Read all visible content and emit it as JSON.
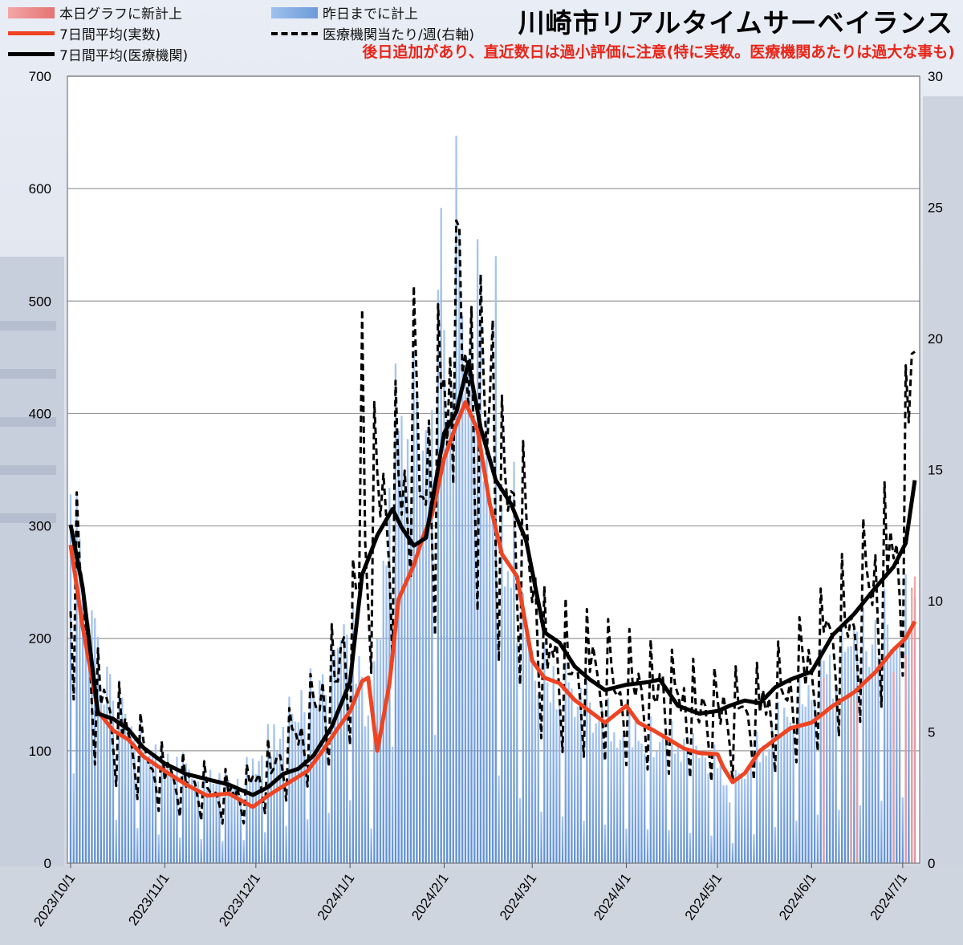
{
  "title": "川崎市リアルタイムサーベイランス",
  "warning": "後日追加があり、直近数日は過小評価に注意(特に実数。医療機関あたりは過大な事も)",
  "legend": [
    {
      "label": "本日グラフに新計上",
      "style": "bar-red"
    },
    {
      "label": "昨日までに計上",
      "style": "bar-blue"
    },
    {
      "label": "7日間平均(実数)",
      "style": "line-red"
    },
    {
      "label": "医療機関当たり/週(右軸)",
      "style": "line-dash"
    },
    {
      "label": "7日間平均(医療機関)",
      "style": "line-black"
    }
  ],
  "colors": {
    "bar_blue": "#7aa6e3",
    "bar_red": "#f19c9c",
    "line_red": "#ee4422",
    "line_black": "#000000",
    "grid": "#9a9a9a"
  },
  "chart_data": {
    "type": "bar",
    "ylim_left": [
      0,
      700
    ],
    "yticks_left": [
      "0",
      "100",
      "200",
      "300",
      "400",
      "500",
      "600",
      "700"
    ],
    "ylim_right": [
      0,
      30
    ],
    "yticks_right": [
      "0",
      "5",
      "10",
      "15",
      "20",
      "25",
      "30"
    ],
    "x_start": "2023-10-01",
    "x_end": "2024-07-05",
    "xtick_labels": [
      "2023/10/1",
      "2023/11/1",
      "2023/12/1",
      "2024/1/1",
      "2024/2/1",
      "2024/3/1",
      "2024/4/1",
      "2024/5/1",
      "2024/6/1",
      "2024/7/1"
    ],
    "series": [
      {
        "name": "昨日までに計上",
        "kind": "daily-bars",
        "axis": "left",
        "anchors": [
          [
            "2023-10-01",
            300
          ],
          [
            "2023-10-10",
            165
          ],
          [
            "2023-10-20",
            120
          ],
          [
            "2023-11-01",
            85
          ],
          [
            "2023-11-15",
            75
          ],
          [
            "2023-11-25",
            65
          ],
          [
            "2023-12-01",
            90
          ],
          [
            "2023-12-15",
            130
          ],
          [
            "2023-12-25",
            160
          ],
          [
            "2024-01-01",
            200
          ],
          [
            "2024-01-08",
            110
          ],
          [
            "2024-01-15",
            370
          ],
          [
            "2024-01-22",
            330
          ],
          [
            "2024-02-01",
            440
          ],
          [
            "2024-02-06",
            460
          ],
          [
            "2024-02-12",
            410
          ],
          [
            "2024-02-20",
            260
          ],
          [
            "2024-03-01",
            170
          ],
          [
            "2024-03-15",
            140
          ],
          [
            "2024-04-01",
            110
          ],
          [
            "2024-04-15",
            105
          ],
          [
            "2024-05-01",
            85
          ],
          [
            "2024-05-05",
            60
          ],
          [
            "2024-05-15",
            100
          ],
          [
            "2024-06-01",
            150
          ],
          [
            "2024-06-15",
            180
          ],
          [
            "2024-06-25",
            200
          ],
          [
            "2024-07-05",
            215
          ]
        ],
        "peaks": [
          [
            "2023-10-01",
            328
          ],
          [
            "2023-10-09",
            218
          ],
          [
            "2024-01-22",
            456
          ],
          [
            "2024-01-28",
            403
          ],
          [
            "2024-01-31",
            583
          ],
          [
            "2024-02-05",
            647
          ],
          [
            "2024-02-12",
            555
          ],
          [
            "2024-02-18",
            540
          ],
          [
            "2024-02-24",
            357
          ]
        ]
      },
      {
        "name": "本日グラフに新計上",
        "kind": "new-bars",
        "axis": "left",
        "points": [
          [
            "2024-06-05",
            165
          ],
          [
            "2024-06-14",
            150
          ],
          [
            "2024-06-16",
            145
          ],
          [
            "2024-06-28",
            170
          ],
          [
            "2024-07-02",
            185
          ],
          [
            "2024-07-04",
            245
          ],
          [
            "2024-07-05",
            255
          ]
        ]
      },
      {
        "name": "7日間平均(実数)",
        "kind": "line",
        "axis": "left",
        "points": [
          [
            "2023-10-01",
            283
          ],
          [
            "2023-10-05",
            210
          ],
          [
            "2023-10-10",
            135
          ],
          [
            "2023-10-15",
            118
          ],
          [
            "2023-10-20",
            110
          ],
          [
            "2023-10-25",
            95
          ],
          [
            "2023-11-01",
            82
          ],
          [
            "2023-11-08",
            70
          ],
          [
            "2023-11-15",
            60
          ],
          [
            "2023-11-22",
            62
          ],
          [
            "2023-11-30",
            50
          ],
          [
            "2023-12-05",
            60
          ],
          [
            "2023-12-12",
            72
          ],
          [
            "2023-12-18",
            82
          ],
          [
            "2023-12-23",
            100
          ],
          [
            "2023-12-28",
            120
          ],
          [
            "2024-01-01",
            135
          ],
          [
            "2024-01-05",
            162
          ],
          [
            "2024-01-07",
            165
          ],
          [
            "2024-01-09",
            120
          ],
          [
            "2024-01-10",
            100
          ],
          [
            "2024-01-12",
            130
          ],
          [
            "2024-01-14",
            160
          ],
          [
            "2024-01-17",
            235
          ],
          [
            "2024-01-22",
            265
          ],
          [
            "2024-01-25",
            290
          ],
          [
            "2024-01-28",
            310
          ],
          [
            "2024-02-01",
            360
          ],
          [
            "2024-02-05",
            390
          ],
          [
            "2024-02-08",
            410
          ],
          [
            "2024-02-12",
            385
          ],
          [
            "2024-02-16",
            320
          ],
          [
            "2024-02-20",
            275
          ],
          [
            "2024-02-25",
            255
          ],
          [
            "2024-03-01",
            180
          ],
          [
            "2024-03-05",
            165
          ],
          [
            "2024-03-10",
            160
          ],
          [
            "2024-03-15",
            145
          ],
          [
            "2024-03-20",
            135
          ],
          [
            "2024-03-25",
            125
          ],
          [
            "2024-04-01",
            140
          ],
          [
            "2024-04-05",
            125
          ],
          [
            "2024-04-10",
            118
          ],
          [
            "2024-04-15",
            110
          ],
          [
            "2024-04-20",
            102
          ],
          [
            "2024-04-25",
            98
          ],
          [
            "2024-05-01",
            97
          ],
          [
            "2024-05-03",
            85
          ],
          [
            "2024-05-06",
            72
          ],
          [
            "2024-05-10",
            80
          ],
          [
            "2024-05-15",
            100
          ],
          [
            "2024-05-20",
            110
          ],
          [
            "2024-05-25",
            120
          ],
          [
            "2024-06-01",
            125
          ],
          [
            "2024-06-08",
            140
          ],
          [
            "2024-06-15",
            152
          ],
          [
            "2024-06-22",
            170
          ],
          [
            "2024-06-28",
            190
          ],
          [
            "2024-07-02",
            200
          ],
          [
            "2024-07-05",
            215
          ]
        ]
      },
      {
        "name": "医療機関当たり/週(右軸)",
        "kind": "dashed-line",
        "axis": "right",
        "anchors": [
          [
            "2023-10-01",
            12.0
          ],
          [
            "2023-10-10",
            6.2
          ],
          [
            "2023-10-20",
            4.8
          ],
          [
            "2023-11-01",
            3.4
          ],
          [
            "2023-11-15",
            2.9
          ],
          [
            "2023-11-25",
            2.6
          ],
          [
            "2023-12-01",
            3.1
          ],
          [
            "2023-12-10",
            4.2
          ],
          [
            "2023-12-20",
            5.6
          ],
          [
            "2024-01-01",
            8.2
          ],
          [
            "2024-01-05",
            10.5
          ],
          [
            "2024-01-08",
            13.2
          ],
          [
            "2024-01-15",
            14.0
          ],
          [
            "2024-01-22",
            13.5
          ],
          [
            "2024-02-01",
            16.8
          ],
          [
            "2024-02-05",
            18.5
          ],
          [
            "2024-02-12",
            17.5
          ],
          [
            "2024-02-20",
            13.5
          ],
          [
            "2024-02-28",
            12.0
          ],
          [
            "2024-03-05",
            8.0
          ],
          [
            "2024-03-15",
            7.5
          ],
          [
            "2024-04-01",
            6.8
          ],
          [
            "2024-04-15",
            6.2
          ],
          [
            "2024-05-01",
            5.6
          ],
          [
            "2024-05-15",
            5.8
          ],
          [
            "2024-06-01",
            7.5
          ],
          [
            "2024-06-15",
            9.5
          ],
          [
            "2024-06-25",
            11.0
          ],
          [
            "2024-07-01",
            13.0
          ],
          [
            "2024-07-05",
            18.5
          ]
        ],
        "peaks": [
          [
            "2024-01-05",
            21.1
          ],
          [
            "2024-01-22",
            22.0
          ],
          [
            "2024-02-05",
            24.5
          ],
          [
            "2024-02-10",
            21.2
          ],
          [
            "2024-02-17",
            20.7
          ],
          [
            "2024-07-05",
            19.5
          ]
        ]
      },
      {
        "name": "7日間平均(医療機関)",
        "kind": "line",
        "axis": "right",
        "points": [
          [
            "2023-10-01",
            12.9
          ],
          [
            "2023-10-05",
            10.5
          ],
          [
            "2023-10-10",
            5.7
          ],
          [
            "2023-10-15",
            5.5
          ],
          [
            "2023-10-20",
            5.1
          ],
          [
            "2023-10-25",
            4.4
          ],
          [
            "2023-11-01",
            3.8
          ],
          [
            "2023-11-08",
            3.4
          ],
          [
            "2023-11-15",
            3.2
          ],
          [
            "2023-11-22",
            3.0
          ],
          [
            "2023-11-30",
            2.6
          ],
          [
            "2023-12-05",
            2.9
          ],
          [
            "2023-12-10",
            3.4
          ],
          [
            "2023-12-15",
            3.6
          ],
          [
            "2023-12-20",
            4.1
          ],
          [
            "2023-12-26",
            5.2
          ],
          [
            "2024-01-01",
            6.9
          ],
          [
            "2024-01-05",
            11.0
          ],
          [
            "2024-01-10",
            12.5
          ],
          [
            "2024-01-15",
            13.5
          ],
          [
            "2024-01-18",
            12.8
          ],
          [
            "2024-01-22",
            12.1
          ],
          [
            "2024-01-26",
            12.4
          ],
          [
            "2024-02-01",
            16.4
          ],
          [
            "2024-02-05",
            17.2
          ],
          [
            "2024-02-09",
            19.1
          ],
          [
            "2024-02-13",
            16.6
          ],
          [
            "2024-02-18",
            14.6
          ],
          [
            "2024-02-23",
            13.7
          ],
          [
            "2024-02-28",
            12.3
          ],
          [
            "2024-03-05",
            8.8
          ],
          [
            "2024-03-10",
            8.4
          ],
          [
            "2024-03-15",
            7.5
          ],
          [
            "2024-03-20",
            7.0
          ],
          [
            "2024-03-25",
            6.6
          ],
          [
            "2024-04-01",
            6.8
          ],
          [
            "2024-04-08",
            6.9
          ],
          [
            "2024-04-12",
            7.0
          ],
          [
            "2024-04-18",
            6.0
          ],
          [
            "2024-04-25",
            5.7
          ],
          [
            "2024-05-01",
            5.8
          ],
          [
            "2024-05-05",
            6.0
          ],
          [
            "2024-05-10",
            6.2
          ],
          [
            "2024-05-15",
            6.1
          ],
          [
            "2024-05-20",
            6.7
          ],
          [
            "2024-05-25",
            7.0
          ],
          [
            "2024-06-01",
            7.3
          ],
          [
            "2024-06-08",
            8.7
          ],
          [
            "2024-06-15",
            9.5
          ],
          [
            "2024-06-22",
            10.5
          ],
          [
            "2024-06-28",
            11.3
          ],
          [
            "2024-07-02",
            12.2
          ],
          [
            "2024-07-05",
            14.6
          ]
        ]
      }
    ]
  }
}
